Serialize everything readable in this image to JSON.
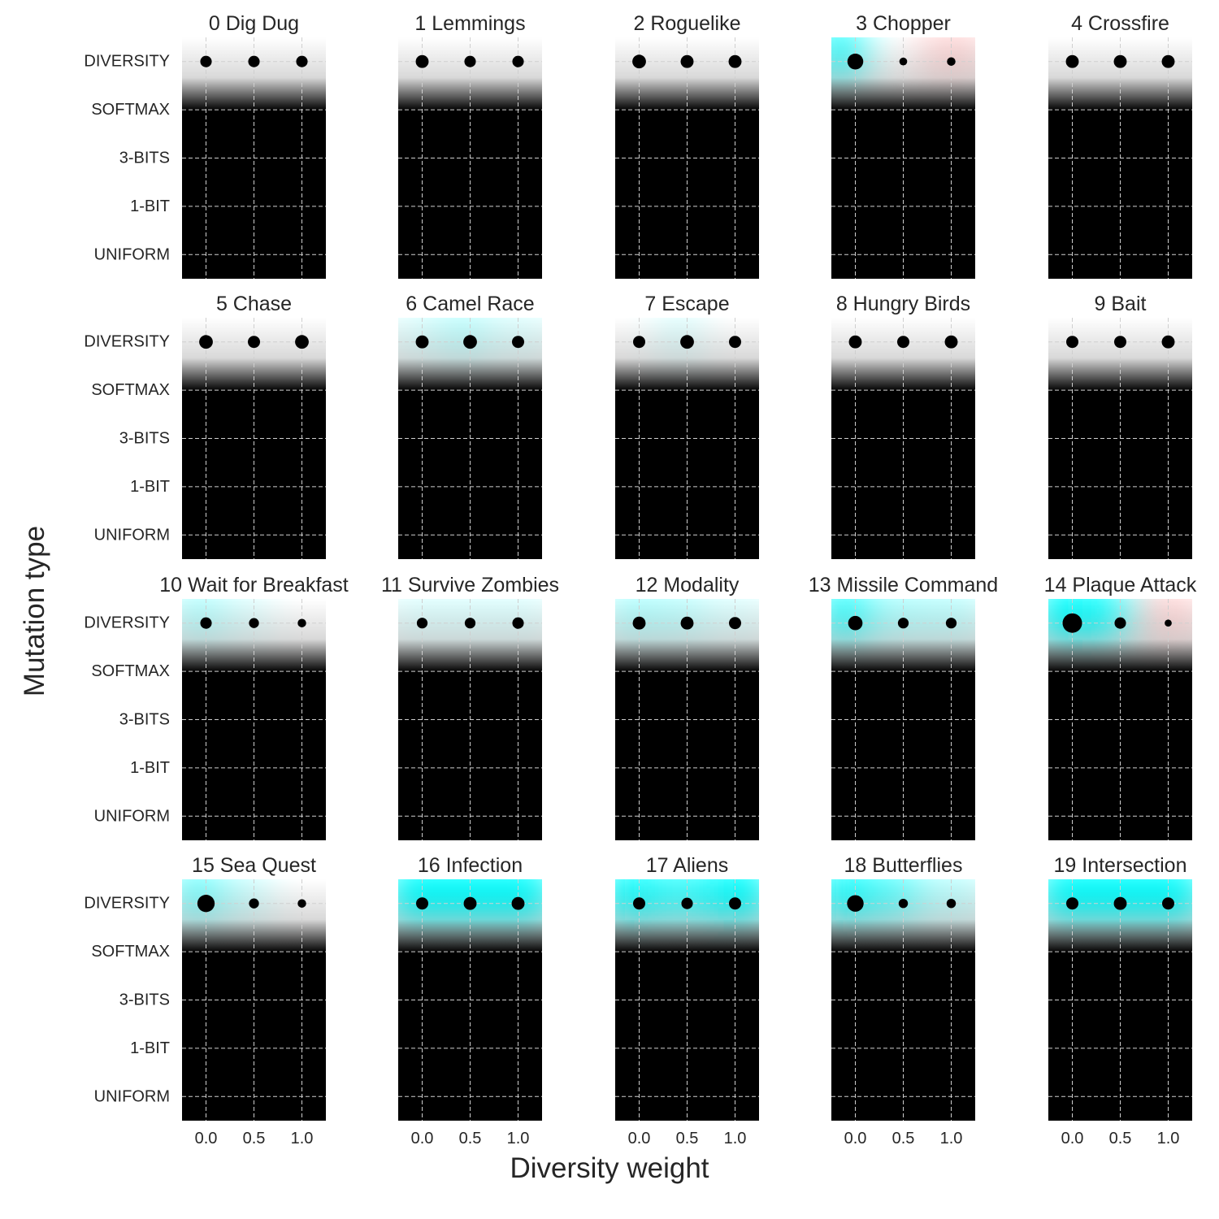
{
  "figure": {
    "xlabel": "Diversity weight",
    "ylabel": "Mutation type"
  },
  "colors": {
    "background": "#000000",
    "high_value": "#00ffff",
    "mid_value": "#ffffff",
    "low_value": "#ffb3b3",
    "grid": "#cfcfcf",
    "marker": "#000000"
  },
  "chart_data": {
    "type": "scatter",
    "x": [
      0.0,
      0.5,
      1.0
    ],
    "x_tick_labels": [
      "0.0",
      "0.5",
      "1.0"
    ],
    "y_categories": [
      "DIVERSITY",
      "SOFTMAX",
      "3-BITS",
      "1-BIT",
      "UNIFORM"
    ],
    "xlim": [
      -0.25,
      1.25
    ],
    "grid": true,
    "panels": [
      {
        "title": "0 Dig Dug",
        "sizes": [
          0.45,
          0.45,
          0.45
        ],
        "glow": [
          0.5,
          0.5,
          0.5
        ]
      },
      {
        "title": "1 Lemmings",
        "sizes": [
          0.55,
          0.45,
          0.45
        ],
        "glow": [
          0.5,
          0.5,
          0.5
        ]
      },
      {
        "title": "2 Roguelike",
        "sizes": [
          0.6,
          0.55,
          0.55
        ],
        "glow": [
          0.5,
          0.5,
          0.5
        ]
      },
      {
        "title": "3 Chopper",
        "sizes": [
          0.75,
          0.2,
          0.25
        ],
        "glow": [
          0.95,
          0.5,
          0.4
        ]
      },
      {
        "title": "4 Crossfire",
        "sizes": [
          0.55,
          0.55,
          0.55
        ],
        "glow": [
          0.5,
          0.5,
          0.5
        ]
      },
      {
        "title": "5 Chase",
        "sizes": [
          0.6,
          0.5,
          0.6
        ],
        "glow": [
          0.5,
          0.5,
          0.5
        ]
      },
      {
        "title": "6 Camel Race",
        "sizes": [
          0.55,
          0.6,
          0.5
        ],
        "glow": [
          0.55,
          0.6,
          0.55
        ]
      },
      {
        "title": "7 Escape",
        "sizes": [
          0.5,
          0.6,
          0.5
        ],
        "glow": [
          0.5,
          0.55,
          0.5
        ]
      },
      {
        "title": "8 Hungry Birds",
        "sizes": [
          0.55,
          0.5,
          0.55
        ],
        "glow": [
          0.5,
          0.5,
          0.5
        ]
      },
      {
        "title": "9 Bait",
        "sizes": [
          0.5,
          0.5,
          0.55
        ],
        "glow": [
          0.5,
          0.5,
          0.5
        ]
      },
      {
        "title": "10 Wait for Breakfast",
        "sizes": [
          0.45,
          0.35,
          0.25
        ],
        "glow": [
          0.62,
          0.55,
          0.5
        ]
      },
      {
        "title": "11 Survive Zombies",
        "sizes": [
          0.4,
          0.4,
          0.45
        ],
        "glow": [
          0.55,
          0.55,
          0.55
        ]
      },
      {
        "title": "12 Modality",
        "sizes": [
          0.55,
          0.55,
          0.5
        ],
        "glow": [
          0.62,
          0.6,
          0.55
        ]
      },
      {
        "title": "13 Missile Command",
        "sizes": [
          0.65,
          0.4,
          0.4
        ],
        "glow": [
          0.85,
          0.62,
          0.6
        ]
      },
      {
        "title": "14 Plaque Attack",
        "sizes": [
          1.0,
          0.45,
          0.15
        ],
        "glow": [
          1.0,
          0.85,
          0.4
        ]
      },
      {
        "title": "15 Sea Quest",
        "sizes": [
          0.85,
          0.35,
          0.25
        ],
        "glow": [
          0.72,
          0.58,
          0.5
        ]
      },
      {
        "title": "16 Infection",
        "sizes": [
          0.5,
          0.55,
          0.55
        ],
        "glow": [
          0.95,
          0.95,
          0.95
        ]
      },
      {
        "title": "17 Aliens",
        "sizes": [
          0.5,
          0.45,
          0.5
        ],
        "glow": [
          0.92,
          0.8,
          0.92
        ]
      },
      {
        "title": "18 Butterflies",
        "sizes": [
          0.8,
          0.3,
          0.3
        ],
        "glow": [
          0.95,
          0.75,
          0.6
        ]
      },
      {
        "title": "19 Intersection",
        "sizes": [
          0.5,
          0.55,
          0.5
        ],
        "glow": [
          0.92,
          0.92,
          0.92
        ]
      }
    ]
  }
}
